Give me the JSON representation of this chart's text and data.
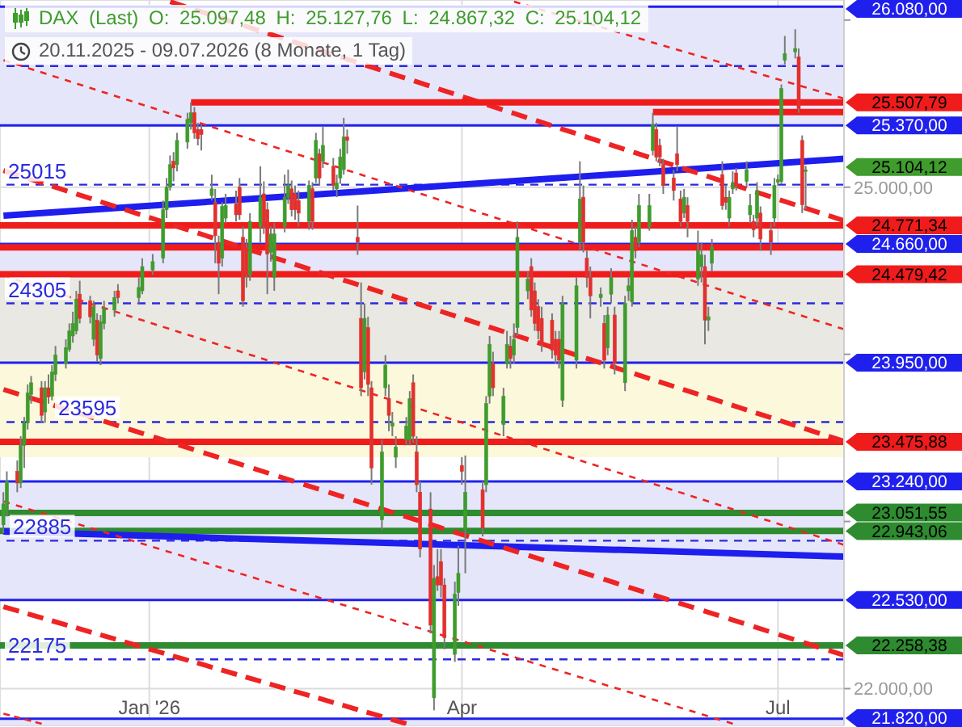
{
  "chart_data": {
    "type": "candlestick",
    "title": "DAX (Last) O: 25.097,48 H: 25.127,76 L: 24.867,32 C: 25.104,12",
    "subtitle": "20.11.2025 - 09.07.2026 (8 Monate, 1 Tag)",
    "x": [
      "2025-11-20",
      "2025-11-21",
      "2025-11-24",
      "2025-11-25",
      "2025-11-26",
      "2025-11-27",
      "2025-11-28",
      "2025-12-01",
      "2025-12-02",
      "2025-12-03",
      "2025-12-04",
      "2025-12-05",
      "2025-12-08",
      "2025-12-09",
      "2025-12-10",
      "2025-12-11",
      "2025-12-12",
      "2025-12-15",
      "2025-12-16",
      "2025-12-17",
      "2025-12-18",
      "2025-12-19",
      "2025-12-22",
      "2025-12-23",
      "2025-12-29",
      "2025-12-30",
      "2026-01-02",
      "2026-01-05",
      "2026-01-06",
      "2026-01-07",
      "2026-01-08",
      "2026-01-09",
      "2026-01-12",
      "2026-01-13",
      "2026-01-14",
      "2026-01-15",
      "2026-01-16",
      "2026-01-19",
      "2026-01-20",
      "2026-01-21",
      "2026-01-22",
      "2026-01-23",
      "2026-01-26",
      "2026-01-27",
      "2026-01-28",
      "2026-01-29",
      "2026-01-30",
      "2026-02-02",
      "2026-02-03",
      "2026-02-04",
      "2026-02-05",
      "2026-02-06",
      "2026-02-09",
      "2026-02-10",
      "2026-02-11",
      "2026-02-12",
      "2026-02-13",
      "2026-02-16",
      "2026-02-17",
      "2026-02-18",
      "2026-02-19",
      "2026-02-20",
      "2026-02-23",
      "2026-02-24",
      "2026-02-25",
      "2026-02-26",
      "2026-02-27",
      "2026-03-02",
      "2026-03-03",
      "2026-03-04",
      "2026-03-05",
      "2026-03-06",
      "2026-03-09",
      "2026-03-10",
      "2026-03-11",
      "2026-03-12",
      "2026-03-13",
      "2026-03-16",
      "2026-03-17",
      "2026-03-18",
      "2026-03-19",
      "2026-03-20",
      "2026-03-23",
      "2026-03-24",
      "2026-03-25",
      "2026-03-26",
      "2026-03-27",
      "2026-03-30",
      "2026-03-31",
      "2026-04-01",
      "2026-04-02",
      "2026-04-07",
      "2026-04-08",
      "2026-04-09",
      "2026-04-10",
      "2026-04-13",
      "2026-04-14",
      "2026-04-15",
      "2026-04-16",
      "2026-04-17",
      "2026-04-20",
      "2026-04-21",
      "2026-04-22",
      "2026-04-23",
      "2026-04-24",
      "2026-04-27",
      "2026-04-28",
      "2026-04-29",
      "2026-04-30",
      "2026-05-04",
      "2026-05-05",
      "2026-05-06",
      "2026-05-07",
      "2026-05-08",
      "2026-05-11",
      "2026-05-12",
      "2026-05-13",
      "2026-05-14",
      "2026-05-15",
      "2026-05-18",
      "2026-05-19",
      "2026-05-20",
      "2026-05-21",
      "2026-05-22",
      "2026-05-25",
      "2026-05-26",
      "2026-05-27",
      "2026-05-28",
      "2026-05-29",
      "2026-06-01",
      "2026-06-02",
      "2026-06-03",
      "2026-06-04",
      "2026-06-05",
      "2026-06-08",
      "2026-06-09",
      "2026-06-10",
      "2026-06-11",
      "2026-06-12",
      "2026-06-15",
      "2026-06-16",
      "2026-06-17",
      "2026-06-18",
      "2026-06-19",
      "2026-06-22",
      "2026-06-23",
      "2026-06-24",
      "2026-06-25",
      "2026-06-26",
      "2026-06-29",
      "2026-06-30",
      "2026-07-01",
      "2026-07-02",
      "2026-07-03",
      "2026-07-06",
      "2026-07-07",
      "2026-07-08",
      "2026-07-09"
    ],
    "ohlc": [
      [
        22980,
        23175,
        22930,
        23105
      ],
      [
        23065,
        23300,
        23030,
        23240
      ],
      [
        23300,
        23365,
        23175,
        23230
      ],
      [
        23230,
        23510,
        23200,
        23455
      ],
      [
        23455,
        23625,
        23320,
        23590
      ],
      [
        23590,
        23820,
        23550,
        23770
      ],
      [
        23760,
        23870,
        23705,
        23830
      ],
      [
        23800,
        23840,
        23590,
        23635
      ],
      [
        23655,
        23840,
        23590,
        23800
      ],
      [
        23800,
        23880,
        23705,
        23745
      ],
      [
        23750,
        23935,
        23725,
        23895
      ],
      [
        23880,
        24050,
        23840,
        23995
      ],
      [
        23945,
        24090,
        23915,
        24040
      ],
      [
        24030,
        24185,
        24015,
        24140
      ],
      [
        24110,
        24255,
        24070,
        24185
      ],
      [
        24140,
        24380,
        24120,
        24330
      ],
      [
        24360,
        24440,
        24185,
        24215
      ],
      [
        24320,
        24350,
        24185,
        24225
      ],
      [
        24090,
        24320,
        24050,
        24285
      ],
      [
        24205,
        24245,
        23955,
        23995
      ],
      [
        23975,
        24235,
        23935,
        24195
      ],
      [
        24185,
        24320,
        24150,
        24275
      ],
      [
        24265,
        24380,
        24225,
        24340
      ],
      [
        24380,
        24420,
        24305,
        24340
      ],
      [
        24340,
        24460,
        24305,
        24400
      ],
      [
        24380,
        24575,
        24360,
        24525
      ],
      [
        24505,
        24600,
        24475,
        24555
      ],
      [
        24575,
        24920,
        24545,
        24865
      ],
      [
        24865,
        25055,
        24815,
        25000
      ],
      [
        25000,
        25190,
        24980,
        25135
      ],
      [
        25155,
        25210,
        25035,
        25115
      ],
      [
        25135,
        25325,
        25095,
        25280
      ],
      [
        25270,
        25445,
        25230,
        25405
      ],
      [
        25385,
        25507.79,
        25345,
        25445
      ],
      [
        25445,
        25480,
        25290,
        25325
      ],
      [
        25345,
        25385,
        25250,
        25290
      ],
      [
        25345,
        25375,
        25220,
        25315
      ],
      [
        24950,
        25075,
        24920,
        24990
      ],
      [
        24910,
        24990,
        24545,
        24710
      ],
      [
        24670,
        24710,
        24360,
        24545
      ],
      [
        24575,
        24910,
        24525,
        24885
      ],
      [
        24815,
        24960,
        24785,
        24890
      ],
      [
        24900,
        24980,
        24795,
        24835
      ],
      [
        25000,
        25055,
        24805,
        24835
      ],
      [
        24700,
        24765,
        24285,
        24320
      ],
      [
        24640,
        24690,
        24400,
        24475
      ],
      [
        24475,
        24845,
        24440,
        24795
      ],
      [
        24765,
        25125,
        24670,
        24940
      ],
      [
        24960,
        25035,
        24720,
        24765
      ],
      [
        24865,
        24910,
        24360,
        24600
      ],
      [
        24610,
        24765,
        24555,
        24720
      ],
      [
        24460,
        24785,
        24380,
        24720
      ],
      [
        24765,
        25075,
        24730,
        24940
      ],
      [
        24940,
        25105,
        24900,
        25010
      ],
      [
        24990,
        25040,
        24825,
        24865
      ],
      [
        24960,
        25010,
        24805,
        24865
      ],
      [
        24920,
        24980,
        24765,
        24845
      ],
      [
        24795,
        25040,
        24745,
        25010
      ],
      [
        24990,
        25030,
        24745,
        24795
      ],
      [
        25055,
        25325,
        25025,
        25280
      ],
      [
        25200,
        25230,
        25010,
        25055
      ],
      [
        25155,
        25365,
        25115,
        25250
      ],
      [
        25125,
        25175,
        24980,
        25010
      ],
      [
        24990,
        25075,
        24940,
        25025
      ],
      [
        25055,
        25230,
        25020,
        25180
      ],
      [
        25105,
        25415,
        25075,
        25300
      ],
      [
        25300,
        25345,
        25200,
        25280
      ],
      [
        24700,
        24890,
        24595,
        24670
      ],
      [
        24215,
        24430,
        23750,
        23800
      ],
      [
        23895,
        24305,
        23850,
        24215
      ],
      [
        24160,
        24225,
        23750,
        23820
      ],
      [
        23800,
        23840,
        23220,
        23320
      ],
      [
        23010,
        23490,
        22950,
        23415
      ],
      [
        23800,
        23995,
        23750,
        23935
      ],
      [
        23735,
        23820,
        23540,
        23635
      ],
      [
        23570,
        23655,
        23510,
        23590
      ],
      [
        23385,
        23510,
        23320,
        23445
      ],
      [
        23490,
        23625,
        23455,
        23570
      ],
      [
        23490,
        23780,
        23455,
        23735
      ],
      [
        23830,
        23880,
        23470,
        23510
      ],
      [
        23415,
        23510,
        23175,
        23220
      ],
      [
        23175,
        23240,
        22785,
        22835
      ],
      [
        23075,
        23175,
        22330,
        22380
      ],
      [
        21945,
        22740,
        21870,
        22660
      ],
      [
        22670,
        22835,
        22585,
        22620
      ],
      [
        22760,
        22835,
        22545,
        22620
      ],
      [
        22620,
        22660,
        22235,
        22305
      ],
      [
        22205,
        22640,
        22160,
        22565
      ],
      [
        22575,
        22855,
        22495,
        22690
      ],
      [
        23335,
        23385,
        23220,
        23300
      ],
      [
        22950,
        23395,
        22690,
        23175
      ],
      [
        23190,
        23240,
        22910,
        22960
      ],
      [
        23220,
        23750,
        23175,
        23705
      ],
      [
        23750,
        24110,
        23705,
        24060
      ],
      [
        23945,
        24015,
        23750,
        23800
      ],
      [
        23580,
        23800,
        23510,
        23750
      ],
      [
        23945,
        24140,
        23915,
        24060
      ],
      [
        24050,
        24110,
        23915,
        23975
      ],
      [
        23995,
        24185,
        23945,
        24090
      ],
      [
        24160,
        24795,
        24110,
        24700
      ],
      [
        24380,
        24495,
        24330,
        24450
      ],
      [
        24525,
        24575,
        24225,
        24265
      ],
      [
        24380,
        24430,
        24140,
        24185
      ],
      [
        24285,
        24330,
        24090,
        24140
      ],
      [
        24215,
        24285,
        24015,
        24060
      ],
      [
        24205,
        24245,
        23975,
        24025
      ],
      [
        24090,
        24140,
        23945,
        23995
      ],
      [
        24090,
        24140,
        23915,
        23965
      ],
      [
        23725,
        24350,
        23685,
        24305
      ],
      [
        23965,
        24460,
        23915,
        24410
      ],
      [
        24670,
        25155,
        24620,
        24930
      ],
      [
        24940,
        25010,
        24610,
        24670
      ],
      [
        24575,
        24620,
        24400,
        24460
      ],
      [
        24460,
        24525,
        24215,
        24350
      ],
      [
        24340,
        24400,
        24285,
        24360
      ],
      [
        24185,
        24235,
        23915,
        23965
      ],
      [
        24040,
        24285,
        23995,
        24235
      ],
      [
        24360,
        24515,
        24305,
        24460
      ],
      [
        24235,
        24285,
        23880,
        23945
      ],
      [
        23830,
        24350,
        23780,
        24305
      ],
      [
        24380,
        24460,
        24320,
        24410
      ],
      [
        24315,
        24805,
        24285,
        24740
      ],
      [
        24700,
        24765,
        24575,
        24620
      ],
      [
        24670,
        24960,
        24640,
        24890
      ],
      [
        24765,
        24960,
        24740,
        24890
      ],
      [
        25220,
        25445,
        25190,
        25375
      ],
      [
        25345,
        25385,
        25155,
        25180
      ],
      [
        25250,
        25290,
        25125,
        25180
      ],
      [
        25135,
        25170,
        24960,
        25010
      ],
      [
        25055,
        25105,
        24920,
        24980
      ],
      [
        25200,
        25365,
        25095,
        25135
      ],
      [
        24930,
        24980,
        24765,
        24795
      ],
      [
        24845,
        24990,
        24815,
        24940
      ],
      [
        24890,
        24940,
        24700,
        24795
      ],
      [
        24450,
        24740,
        24410,
        24620
      ],
      [
        24525,
        24670,
        24430,
        24595
      ],
      [
        24525,
        24595,
        24060,
        24205
      ],
      [
        24205,
        24285,
        24140,
        24225
      ],
      [
        24545,
        24690,
        24495,
        24640
      ],
      [
        25075,
        25155,
        24865,
        24890
      ],
      [
        24940,
        25010,
        24865,
        24910
      ],
      [
        24815,
        24980,
        24765,
        24940
      ],
      [
        24990,
        25095,
        24960,
        25025
      ],
      [
        25085,
        25115,
        24980,
        25010
      ],
      [
        25035,
        25155,
        25000,
        25105
      ],
      [
        24835,
        24960,
        24785,
        24890
      ],
      [
        24795,
        24835,
        24700,
        24745
      ],
      [
        24815,
        25030,
        24765,
        24980
      ],
      [
        24845,
        24885,
        24620,
        24690
      ],
      [
        24740,
        24785,
        24595,
        24670
      ],
      [
        24815,
        25055,
        24765,
        25010
      ],
      [
        25030,
        25075,
        25010,
        25045
      ],
      [
        25035,
        25615,
        25020,
        25590
      ],
      [
        25760,
        25905,
        25735,
        25800
      ],
      [
        25810,
        25945,
        25770,
        25830
      ],
      [
        25780,
        25830,
        25445,
        25470
      ],
      [
        25280,
        25310,
        24845,
        24895
      ],
      [
        25097.48,
        25127.76,
        24867.32,
        25104.12
      ]
    ],
    "colors": [
      "#3f9c2d",
      "#3f9c2d",
      "#e2312d",
      "#3f9c2d",
      "#3f9c2d",
      "#3f9c2d",
      "#3f9c2d",
      "#e2312d",
      "#3f9c2d",
      "#e2312d",
      "#3f9c2d",
      "#3f9c2d",
      "#3f9c2d",
      "#3f9c2d",
      "#3f9c2d",
      "#3f9c2d",
      "#e2312d",
      "#e2312d",
      "#3f9c2d",
      "#e2312d",
      "#3f9c2d",
      "#3f9c2d",
      "#3f9c2d",
      "#e2312d",
      "#3f9c2d",
      "#3f9c2d",
      "#3f9c2d",
      "#3f9c2d",
      "#3f9c2d",
      "#3f9c2d",
      "#e2312d",
      "#3f9c2d",
      "#3f9c2d",
      "#3f9c2d",
      "#e2312d",
      "#e2312d",
      "#e2312d",
      "#3f9c2d",
      "#e2312d",
      "#e2312d",
      "#3f9c2d",
      "#3f9c2d",
      "#e2312d",
      "#e2312d",
      "#e2312d",
      "#e2312d",
      "#3f9c2d",
      "#3f9c2d",
      "#e2312d",
      "#e2312d",
      "#3f9c2d",
      "#3f9c2d",
      "#3f9c2d",
      "#3f9c2d",
      "#e2312d",
      "#e2312d",
      "#e2312d",
      "#3f9c2d",
      "#e2312d",
      "#3f9c2d",
      "#e2312d",
      "#3f9c2d",
      "#e2312d",
      "#3f9c2d",
      "#3f9c2d",
      "#3f9c2d",
      "#e2312d",
      "#e2312d",
      "#e2312d",
      "#3f9c2d",
      "#e2312d",
      "#e2312d",
      "#3f9c2d",
      "#3f9c2d",
      "#e2312d",
      "#3f9c2d",
      "#3f9c2d",
      "#3f9c2d",
      "#3f9c2d",
      "#e2312d",
      "#e2312d",
      "#e2312d",
      "#e2312d",
      "#3f9c2d",
      "#e2312d",
      "#e2312d",
      "#e2312d",
      "#3f9c2d",
      "#3f9c2d",
      "#e2312d",
      "#3f9c2d",
      "#e2312d",
      "#3f9c2d",
      "#3f9c2d",
      "#e2312d",
      "#3f9c2d",
      "#3f9c2d",
      "#e2312d",
      "#3f9c2d",
      "#3f9c2d",
      "#3f9c2d",
      "#e2312d",
      "#e2312d",
      "#e2312d",
      "#e2312d",
      "#e2312d",
      "#e2312d",
      "#e2312d",
      "#3f9c2d",
      "#3f9c2d",
      "#3f9c2d",
      "#e2312d",
      "#e2312d",
      "#e2312d",
      "#3f9c2d",
      "#e2312d",
      "#3f9c2d",
      "#3f9c2d",
      "#e2312d",
      "#3f9c2d",
      "#3f9c2d",
      "#3f9c2d",
      "#e2312d",
      "#3f9c2d",
      "#3f9c2d",
      "#3f9c2d",
      "#e2312d",
      "#e2312d",
      "#e2312d",
      "#e2312d",
      "#e2312d",
      "#e2312d",
      "#3f9c2d",
      "#e2312d",
      "#3f9c2d",
      "#3f9c2d",
      "#e2312d",
      "#3f9c2d",
      "#3f9c2d",
      "#e2312d",
      "#e2312d",
      "#3f9c2d",
      "#3f9c2d",
      "#e2312d",
      "#3f9c2d",
      "#3f9c2d",
      "#e2312d",
      "#3f9c2d",
      "#e2312d",
      "#e2312d",
      "#3f9c2d",
      "#3f9c2d",
      "#3f9c2d",
      "#3f9c2d",
      "#3f9c2d",
      "#e2312d",
      "#e2312d",
      "#3f9c2d"
    ],
    "xlim": [
      "2025-11-19",
      "2026-07-20"
    ],
    "xticks": [
      {
        "value": "2026-01-01",
        "label": "Jan '26"
      },
      {
        "value": "2026-04-01",
        "label": "Apr"
      },
      {
        "value": "2026-07-01",
        "label": "Jul"
      }
    ],
    "ylim": [
      21780,
      26120
    ],
    "yticks": [
      {
        "value": 22000,
        "label": "22.000,00"
      },
      {
        "value": 23000,
        "label": null
      },
      {
        "value": 24000,
        "label": null
      },
      {
        "value": 25000,
        "label": "25.000,00"
      },
      {
        "value": 26000,
        "label": null
      }
    ],
    "grid": true,
    "bands": [
      {
        "axis": "y",
        "from": 25370,
        "to": 26080,
        "color": "#e6e6fa"
      },
      {
        "axis": "y",
        "from": 23950,
        "to": 24660,
        "color": "#e6e6fa"
      },
      {
        "axis": "y",
        "from": 22530,
        "to": 23240,
        "color": "#e6e6fa"
      },
      {
        "axis": "y",
        "from": 21780,
        "to": 21820,
        "color": "#e6e6fa"
      },
      {
        "axis": "y",
        "from": 23950,
        "to": 24479.42,
        "color": "#e9e8e2"
      },
      {
        "axis": "y",
        "from": 23385,
        "to": 23950,
        "color": "#fcf8dc"
      }
    ],
    "ref_lines": [
      {
        "axis": "y",
        "value": 26080,
        "label": "26.080,00",
        "color": "#2020ee"
      },
      {
        "axis": "y",
        "value": 25725,
        "color": "#2a2ae0",
        "line_style": "dashed"
      },
      {
        "axis": "y",
        "value": 25370,
        "label": "25.370,00",
        "color": "#2020ee"
      },
      {
        "axis": "y",
        "value": 25015,
        "label": "25015",
        "color": "#2a2ae0",
        "line_style": "dashed"
      },
      {
        "axis": "y",
        "value": 24771.34,
        "label": "24.771,34",
        "color": "#f01c1c"
      },
      {
        "axis": "y",
        "value": 24660,
        "label": "24.660,00",
        "color": "#2020ee"
      },
      {
        "axis": "y",
        "value": 24640,
        "color": "#f01c1c"
      },
      {
        "axis": "y",
        "value": 24479.42,
        "label": "24.479,42",
        "color": "#f01c1c"
      },
      {
        "axis": "y",
        "value": 24305,
        "label": "24305",
        "color": "#2a2ae0",
        "line_style": "dashed"
      },
      {
        "axis": "y",
        "value": 23950,
        "label": "23.950,00",
        "color": "#2020ee"
      },
      {
        "axis": "y",
        "value": 23595,
        "label": "23595",
        "color": "#2a2ae0",
        "line_style": "dashed"
      },
      {
        "axis": "y",
        "value": 23475.88,
        "label": "23.475,88",
        "color": "#f01c1c"
      },
      {
        "axis": "y",
        "value": 23240,
        "label": "23.240,00",
        "color": "#2020ee"
      },
      {
        "axis": "y",
        "value": 23051.55,
        "label": "23.051,55",
        "color": "#2e8b30"
      },
      {
        "axis": "y",
        "value": 22943.06,
        "label": "22.943,06",
        "color": "#2e8b30"
      },
      {
        "axis": "y",
        "value": 22885,
        "label": "22885",
        "color": "#2a2ae0",
        "line_style": "dashed"
      },
      {
        "axis": "y",
        "value": 22530,
        "label": "22.530,00",
        "color": "#2020ee"
      },
      {
        "axis": "y",
        "value": 22258.38,
        "label": "22.258,38",
        "color": "#2e8b30"
      },
      {
        "axis": "y",
        "value": 22175,
        "label": "22175",
        "color": "#2a2ae0",
        "line_style": "dashed"
      },
      {
        "axis": "y",
        "value": 21820,
        "label": "21.820,00",
        "color": "#2020ee"
      }
    ],
    "series": [
      {
        "type": "line",
        "x": [
          "2025-11-20",
          "2026-07-20"
        ],
        "values": [
          24830,
          25170
        ],
        "color": "#1e1eee",
        "line_style": "solid"
      },
      {
        "type": "line",
        "x": [
          "2025-11-20",
          "2026-07-20"
        ],
        "values": [
          22940,
          22790
        ],
        "color": "#1e1eee",
        "line_style": "solid"
      },
      {
        "type": "line",
        "x": [
          "2026-01-07",
          "2026-07-20"
        ],
        "values": [
          26110,
          24800
        ],
        "color": "#ee2424",
        "line_style": "dashed"
      },
      {
        "type": "line",
        "x": [
          "2025-11-20",
          "2026-07-20"
        ],
        "values": [
          25100,
          23480
        ],
        "color": "#ee2424",
        "line_style": "dashed"
      },
      {
        "type": "line",
        "x": [
          "2025-11-20",
          "2026-07-20"
        ],
        "values": [
          23790,
          22200
        ],
        "color": "#ee2424",
        "line_style": "dashed"
      },
      {
        "type": "line",
        "x": [
          "2025-11-20",
          "2026-03-16"
        ],
        "values": [
          22490,
          21790
        ],
        "color": "#ee2424",
        "line_style": "dashed"
      },
      {
        "type": "line",
        "x": [
          "2025-11-20",
          "2026-07-20"
        ],
        "values": [
          25760,
          24150
        ],
        "color": "#ee2424",
        "line_style": "dotted"
      },
      {
        "type": "line",
        "x": [
          "2026-04-16",
          "2026-07-20"
        ],
        "values": [
          26110,
          25530
        ],
        "color": "#ee2424",
        "line_style": "dotted"
      },
      {
        "type": "line",
        "x": [
          "2025-11-20",
          "2026-07-20"
        ],
        "values": [
          24470,
          22860
        ],
        "color": "#ee2424",
        "line_style": "dotted"
      },
      {
        "type": "line",
        "x": [
          "2025-11-20",
          "2026-06-18"
        ],
        "values": [
          23120,
          21790
        ],
        "color": "#ee2424",
        "line_style": "dotted"
      },
      {
        "type": "line",
        "x": [
          "2025-11-20",
          "2025-12-01"
        ],
        "values": [
          21850,
          21790
        ],
        "color": "#ee2424",
        "line_style": "dotted"
      },
      {
        "type": "line",
        "x": [
          "2026-01-13",
          "2026-07-20"
        ],
        "values": [
          25507.79,
          25507.79
        ],
        "color": "#f01c1c",
        "line_style": "solid",
        "value_labels": [
          null,
          "25.507,79"
        ]
      },
      {
        "type": "line",
        "x": [
          "2026-05-26",
          "2026-07-20"
        ],
        "values": [
          25450,
          25450
        ],
        "color": "#f01c1c",
        "line_style": "solid"
      }
    ],
    "annotations": [
      "25.104,12"
    ]
  }
}
